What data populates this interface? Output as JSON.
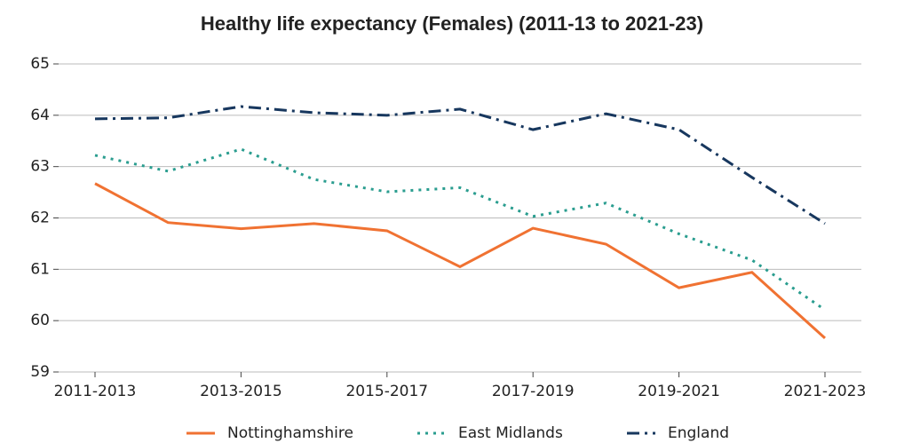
{
  "chart_data": {
    "type": "line",
    "title": "Healthy life expectancy (Females) (2011-13 to 2021-23)",
    "categories": [
      "2011-2013",
      null,
      "2013-2015",
      null,
      "2015-2017",
      null,
      "2017-2019",
      null,
      "2019-2021",
      null,
      "2021-2023"
    ],
    "series": [
      {
        "name": "Nottinghamshire",
        "color": "#f07232",
        "style": "solid",
        "values": [
          62.67,
          61.91,
          61.79,
          61.89,
          61.75,
          61.05,
          61.8,
          61.49,
          60.64,
          60.94,
          59.66
        ]
      },
      {
        "name": "East Midlands",
        "color": "#2a9d8f",
        "style": "dotted",
        "values": [
          63.22,
          62.91,
          63.34,
          62.75,
          62.51,
          62.59,
          62.03,
          62.29,
          61.69,
          61.18,
          60.21
        ]
      },
      {
        "name": "England",
        "color": "#17375e",
        "style": "dashdot",
        "values": [
          63.93,
          63.95,
          64.17,
          64.05,
          64.0,
          64.12,
          63.72,
          64.03,
          63.72,
          62.79,
          61.89
        ]
      }
    ],
    "ylim": [
      59,
      65
    ],
    "yticks": [
      59,
      60,
      61,
      62,
      63,
      64,
      65
    ],
    "grid": true,
    "legend": "bottom"
  }
}
